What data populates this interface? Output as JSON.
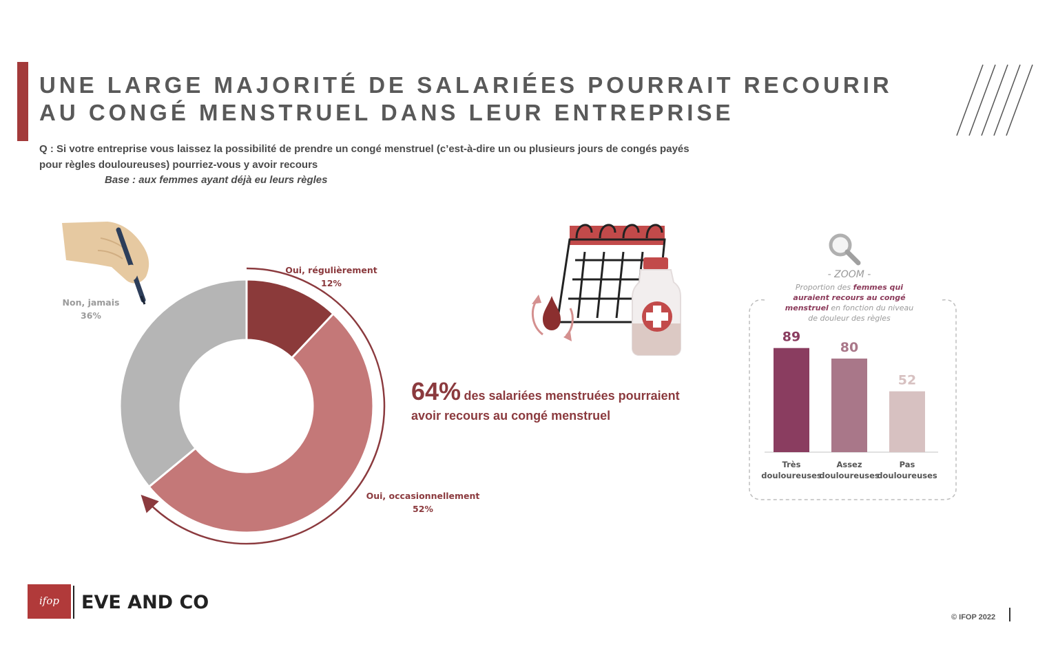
{
  "title": {
    "line1": "UNE LARGE MAJORITÉ DE SALARIÉES POURRAIT RECOURIR",
    "line2": "AU CONGÉ MENSTRUEL DANS LEUR ENTREPRISE"
  },
  "question": {
    "line1": "Q : Si votre entreprise vous laissez la possibilité de prendre un congé menstruel (c’est-à-dire un ou plusieurs jours de congés payés",
    "line2": "pour règles douloureuses) pourriez-vous y avoir recours",
    "base": "Base : aux femmes ayant déjà eu leurs règles"
  },
  "headline": {
    "percent": "64%",
    "text1": "des salariées menstruées pourraient",
    "text2": "avoir recours au congé menstruel"
  },
  "zoom": {
    "label": "- ZOOM -",
    "caption_part1": "Proportion des ",
    "caption_bold1": "femmes qui",
    "caption_bold2": "auraient recours au congé",
    "caption_bold3": "menstruel",
    "caption_part2": " en fonction du niveau",
    "caption_part3": "de douleur des règles"
  },
  "footer": {
    "logo": "ifop",
    "brand": "EVE AND CO",
    "copyright": "© IFOP 2022"
  },
  "colors": {
    "accent": "#a33a3a",
    "dark_red": "#8b3a3a",
    "salmon": "#c47878",
    "grey": "#b5b5b5",
    "bar1": "#8a3d60",
    "bar2": "#a97789",
    "bar3": "#d7c1c1"
  },
  "icons": [
    "hand-pen-icon",
    "calendar-icon",
    "blood-drop-icon",
    "medicine-bottle-icon",
    "magnifier-icon"
  ],
  "chart_data": [
    {
      "type": "pie",
      "donut": true,
      "labels": [
        "Oui, régulièrement",
        "Oui, occasionnellement",
        "Non, jamais"
      ],
      "values": [
        12,
        52,
        36
      ],
      "value_labels": [
        "12%",
        "52%",
        "36%"
      ],
      "colors": [
        "#8b3a3a",
        "#c47878",
        "#b5b5b5"
      ]
    },
    {
      "type": "bar",
      "categories": [
        [
          "Très",
          "douloureuses"
        ],
        [
          "Assez",
          "douloureuses"
        ],
        [
          "Pas",
          "douloureuses"
        ]
      ],
      "values": [
        89,
        80,
        52
      ],
      "ylim": [
        0,
        100
      ],
      "colors": [
        "#8a3d60",
        "#a97789",
        "#d7c1c1"
      ]
    }
  ]
}
